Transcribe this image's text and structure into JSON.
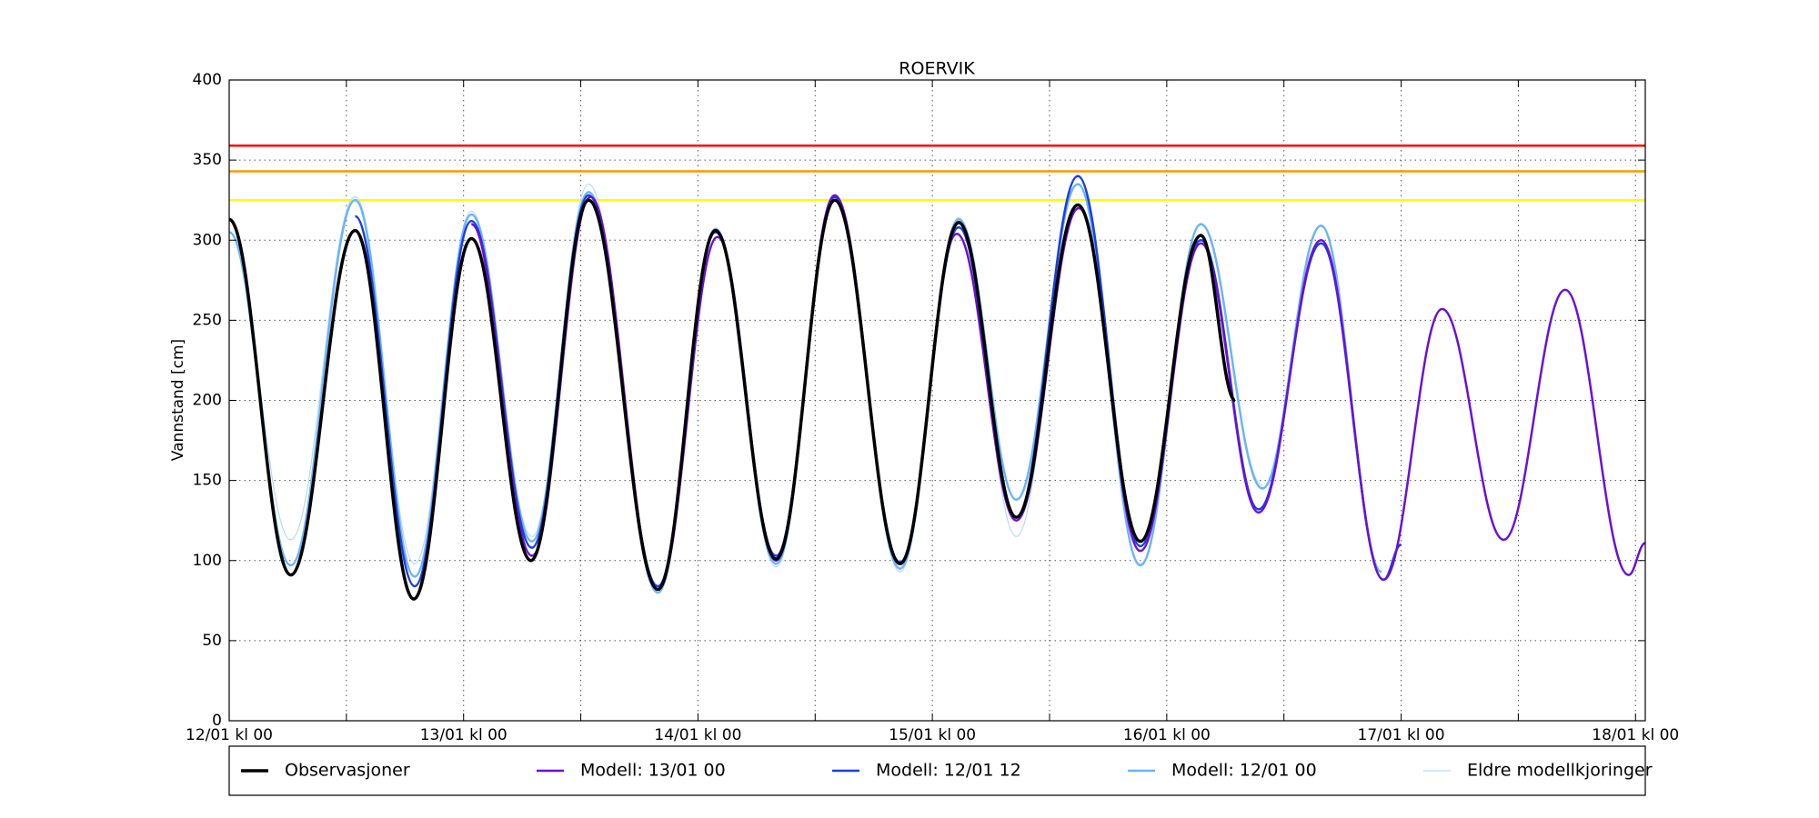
{
  "chart_data": {
    "type": "line",
    "title": "ROERVIK",
    "y_label": "Vannstand [cm]",
    "xlim": [
      0,
      145
    ],
    "ylim": [
      0,
      400
    ],
    "yticks": [
      0,
      50,
      100,
      150,
      200,
      250,
      300,
      350,
      400
    ],
    "xticks": [
      {
        "value": 0,
        "label": "12/01 kl 00"
      },
      {
        "value": 24,
        "label": "13/01 kl 00"
      },
      {
        "value": 48,
        "label": "14/01 kl 00"
      },
      {
        "value": 72,
        "label": "15/01 kl 00"
      },
      {
        "value": 96,
        "label": "16/01 kl 00"
      },
      {
        "value": 120,
        "label": "17/01 kl 00"
      },
      {
        "value": 144,
        "label": "18/01 kl 00"
      }
    ],
    "xticks_minor": [
      12,
      36,
      60,
      84,
      108,
      132
    ],
    "grid": true,
    "thresholds": [
      {
        "value": 359,
        "color": "#ff0000"
      },
      {
        "value": 343,
        "color": "#ff9900"
      },
      {
        "value": 325,
        "color": "#ffff00"
      }
    ],
    "series": [
      {
        "name": "Observasjoner",
        "color": "#000000",
        "x": [
          0,
          6.3,
          12.9,
          18.9,
          24.8,
          30.9,
          36.8,
          43.9,
          49.8,
          56,
          62,
          68.7,
          74.7,
          80.6,
          86.9,
          93.3,
          99.5,
          103
        ],
        "values": [
          313,
          91,
          306,
          76,
          301,
          100,
          325,
          82,
          306,
          101,
          325,
          98,
          311,
          127,
          322,
          112,
          303,
          200
        ]
      },
      {
        "name": "Modell: 13/01 00",
        "color": "#6a10d8",
        "x": [
          24.8,
          31,
          37,
          43.9,
          50,
          56,
          62,
          68.7,
          74.5,
          80.6,
          87,
          93.3,
          99.5,
          105.4,
          111.8,
          118.2,
          124.2,
          130.5,
          136.8,
          143.3,
          145
        ],
        "values": [
          310,
          103,
          327,
          82,
          302,
          100,
          328,
          98,
          304,
          125,
          320,
          106,
          298,
          130,
          300,
          88,
          257,
          113,
          269,
          91,
          111
        ]
      },
      {
        "name": "Modell: 12/01 12",
        "color": "#1a3ee0",
        "x": [
          12.9,
          19,
          24.8,
          31,
          36.8,
          43.9,
          49.8,
          56,
          62,
          68.7,
          74.7,
          80.6,
          86.9,
          93.3,
          99.5,
          105.4,
          111.8,
          118.2,
          120
        ],
        "values": [
          315,
          84,
          312,
          108,
          328,
          84,
          305,
          103,
          327,
          99,
          308,
          127,
          340,
          109,
          300,
          132,
          298,
          88,
          110
        ]
      },
      {
        "name": "Modell: 12/01 00",
        "color": "#6ab4f8",
        "x": [
          0,
          6.3,
          12.9,
          19,
          24.8,
          31,
          36.8,
          43.9,
          49.8,
          56,
          62,
          68.7,
          74.7,
          80.6,
          86.9,
          93.3,
          99.5,
          105.8,
          111.8,
          118
        ],
        "values": [
          305,
          97,
          325,
          90,
          316,
          112,
          330,
          80,
          307,
          98,
          327,
          95,
          313,
          138,
          335,
          97,
          310,
          145,
          309,
          93
        ]
      },
      {
        "name": "Eldre modellkjoringer",
        "color": "#b8d8f8",
        "x": [
          0,
          6.3,
          12.9,
          19,
          24.8,
          31,
          36.8,
          43.9,
          49.8,
          56,
          62,
          68.7,
          74.7,
          80.6,
          86.9,
          93.3,
          99.5,
          105.8
        ],
        "values": [
          305,
          113,
          327,
          98,
          318,
          115,
          335,
          80,
          305,
          96,
          325,
          93,
          314,
          115,
          335,
          98,
          310,
          147
        ]
      }
    ]
  }
}
